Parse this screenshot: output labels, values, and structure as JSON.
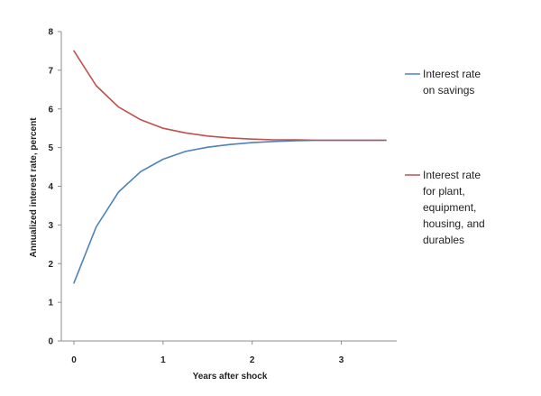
{
  "chart_data": {
    "type": "line",
    "title": "",
    "xlabel": "Years after shock",
    "ylabel": "Annualized interest rate, percent",
    "xlim": [
      0,
      3.5
    ],
    "ylim": [
      0,
      8
    ],
    "x_ticks": [
      "0",
      "1",
      "2",
      "3"
    ],
    "y_ticks": [
      "0",
      "1",
      "2",
      "3",
      "4",
      "5",
      "6",
      "7",
      "8"
    ],
    "grid": false,
    "legend_position": "right",
    "series": [
      {
        "name": [
          "Interest rate",
          "on savings"
        ],
        "color": "#4f81bd",
        "points": [
          [
            0,
            1.5
          ],
          [
            0.25,
            2.95
          ],
          [
            0.5,
            3.85
          ],
          [
            0.75,
            4.38
          ],
          [
            1.0,
            4.7
          ],
          [
            1.25,
            4.9
          ],
          [
            1.5,
            5.01
          ],
          [
            1.75,
            5.08
          ],
          [
            2.0,
            5.13
          ],
          [
            2.25,
            5.16
          ],
          [
            2.5,
            5.18
          ],
          [
            2.75,
            5.19
          ],
          [
            3.0,
            5.19
          ],
          [
            3.25,
            5.19
          ],
          [
            3.5,
            5.19
          ]
        ]
      },
      {
        "name": [
          "Interest rate",
          "for plant,",
          "equipment,",
          "housing, and",
          "durables"
        ],
        "color": "#c0504d",
        "points": [
          [
            0,
            7.5
          ],
          [
            0.25,
            6.6
          ],
          [
            0.5,
            6.05
          ],
          [
            0.75,
            5.72
          ],
          [
            1.0,
            5.5
          ],
          [
            1.25,
            5.38
          ],
          [
            1.5,
            5.3
          ],
          [
            1.75,
            5.25
          ],
          [
            2.0,
            5.22
          ],
          [
            2.25,
            5.2
          ],
          [
            2.5,
            5.2
          ],
          [
            2.75,
            5.19
          ],
          [
            3.0,
            5.19
          ],
          [
            3.25,
            5.19
          ],
          [
            3.5,
            5.19
          ]
        ]
      }
    ]
  }
}
